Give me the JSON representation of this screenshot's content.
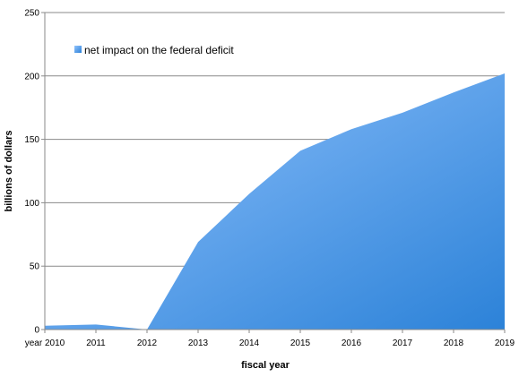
{
  "chart_data": {
    "type": "area",
    "categories": [
      "year 2010",
      "2011",
      "2012",
      "2013",
      "2014",
      "2015",
      "2016",
      "2017",
      "2018",
      "2019"
    ],
    "series": [
      {
        "name": "net impact on the federal deficit",
        "values": [
          3,
          4,
          0,
          69,
          107,
          141,
          158,
          171,
          187,
          202
        ]
      }
    ],
    "xlabel": "fiscal year",
    "ylabel": "billions of dollars",
    "ylim": [
      0,
      250
    ],
    "yticks": [
      "0",
      "50",
      "100",
      "150",
      "200",
      "250"
    ],
    "grid": true,
    "legend_position": "top-left",
    "colors": {
      "fill_top": "#92c3fd",
      "fill_bottom": "#2c82d8",
      "grid": "#8a8a8a",
      "axis": "#8a8a8a"
    }
  }
}
